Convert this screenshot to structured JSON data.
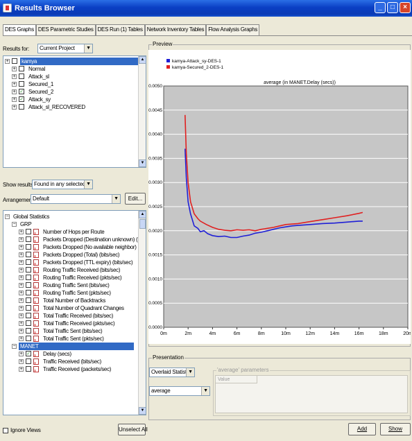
{
  "window": {
    "title": "Results Browser"
  },
  "tabs": [
    "DES Graphs",
    "DES Parametric Studies",
    "DES Run (1) Tables",
    "Network Inventory Tables",
    "Flow Analysis Graphs"
  ],
  "results_for": {
    "label": "Results for:",
    "value": "Current Project"
  },
  "project_tree": [
    {
      "label": "kamya",
      "selected": true,
      "checked": false
    },
    {
      "label": "Normal",
      "checked": false
    },
    {
      "label": "Attack_sl",
      "checked": false
    },
    {
      "label": "Secured_1",
      "checked": false
    },
    {
      "label": "Secured_2",
      "checked": true
    },
    {
      "label": "Attack_sy",
      "checked": true
    },
    {
      "label": "Attack_sl_RECOVERED",
      "checked": false
    }
  ],
  "show_results": {
    "label": "Show results:",
    "value": "Found in any selected files"
  },
  "arrangement": {
    "label": "Arrangement:",
    "value": "Default",
    "edit_label": "Edit..."
  },
  "stats_tree": {
    "global": "Global Statistics",
    "grp": "GRP",
    "grp_items": [
      "Number of Hops per Route",
      "Packets Dropped (Destination unknown) (bits/sec)",
      "Packets Dropped (No available neighbor) (bits/sec)",
      "Packets Dropped (Total) (bits/sec)",
      "Packets Dropped (TTL expiry) (bits/sec)",
      "Routing Traffic Received (bits/sec)",
      "Routing Traffic Received (pkts/sec)",
      "Routing Traffic Sent (bits/sec)",
      "Routing Traffic Sent (pkts/sec)",
      "Total Number of Backtracks",
      "Total Number of Quadrant Changes",
      "Total Traffic Received (bits/sec)",
      "Total Traffic Received (pkts/sec)",
      "Total Traffic Sent (bits/sec)",
      "Total Traffic Sent (pkts/sec)"
    ],
    "manet": "MANET",
    "manet_items": [
      "Delay (secs)",
      "Traffic Received (bits/sec)",
      "Traffic Received (packets/sec)"
    ]
  },
  "ignore_views": "Ignore Views",
  "unselect_all": "Unselect All",
  "preview": {
    "label": "Preview"
  },
  "presentation": {
    "label": "Presentation",
    "mode": "Overlaid Statistics",
    "func": "average",
    "params_label": "'average' parameters",
    "value_header": "Value"
  },
  "buttons": {
    "add": "Add",
    "show": "Show"
  },
  "colors": {
    "series1": "#1f1fd6",
    "series2": "#e02020",
    "plot_bg": "#c6c6c6"
  },
  "chart_data": {
    "type": "line",
    "title": "average (in MANET.Delay (secs))",
    "xlabel": "",
    "ylabel": "",
    "xlim": [
      0,
      20
    ],
    "ylim": [
      0,
      0.005
    ],
    "xticks": [
      0,
      2,
      4,
      6,
      8,
      10,
      12,
      14,
      16,
      18,
      20
    ],
    "xtick_labels": [
      "0m",
      "2m",
      "4m",
      "6m",
      "8m",
      "10m",
      "12m",
      "14m",
      "16m",
      "18m",
      "20m"
    ],
    "yticks": [
      0,
      0.0005,
      0.001,
      0.0015,
      0.002,
      0.0025,
      0.003,
      0.0035,
      0.004,
      0.0045,
      0.005
    ],
    "ytick_labels": [
      "0.0000",
      "0.0005",
      "0.0010",
      "0.0015",
      "0.0020",
      "0.0025",
      "0.0030",
      "0.0035",
      "0.0040",
      "0.0045",
      "0.0050"
    ],
    "grid": true,
    "legend": "top-left",
    "series": [
      {
        "name": "kamya-Attack_sy-DES-1",
        "color": "#1f1fd6",
        "x": [
          1.75,
          1.85,
          2.0,
          2.2,
          2.5,
          2.8,
          3.0,
          3.3,
          3.6,
          4.0,
          4.5,
          5.0,
          5.5,
          6.0,
          6.5,
          7.0,
          7.5,
          8.0,
          8.5,
          9.0,
          9.5,
          10.0,
          10.5,
          11.0,
          12.0,
          13.0,
          14.0,
          15.0,
          16.0,
          16.3
        ],
        "y": [
          0.0037,
          0.0031,
          0.0026,
          0.00235,
          0.0021,
          0.00205,
          0.00198,
          0.002,
          0.00194,
          0.0019,
          0.00188,
          0.00189,
          0.00186,
          0.00186,
          0.00189,
          0.00191,
          0.00195,
          0.00197,
          0.002,
          0.00203,
          0.00206,
          0.00208,
          0.0021,
          0.00211,
          0.00213,
          0.00215,
          0.00216,
          0.00218,
          0.0022,
          0.0022
        ]
      },
      {
        "name": "kamya-Secured_2-DES-1",
        "color": "#e02020",
        "x": [
          1.75,
          1.85,
          2.0,
          2.2,
          2.5,
          2.8,
          3.0,
          3.5,
          4.0,
          4.5,
          5.0,
          5.5,
          6.0,
          6.5,
          7.0,
          7.5,
          8.0,
          8.5,
          9.0,
          9.5,
          10.0,
          11.0,
          12.0,
          13.0,
          14.0,
          15.0,
          16.0,
          16.3
        ],
        "y": [
          0.0044,
          0.0036,
          0.003,
          0.0026,
          0.00235,
          0.00225,
          0.0022,
          0.00213,
          0.00207,
          0.00203,
          0.00201,
          0.002,
          0.00202,
          0.00201,
          0.00202,
          0.002,
          0.00203,
          0.00205,
          0.00207,
          0.0021,
          0.00213,
          0.00215,
          0.00219,
          0.00223,
          0.00227,
          0.00231,
          0.00236,
          0.00238
        ]
      }
    ]
  }
}
